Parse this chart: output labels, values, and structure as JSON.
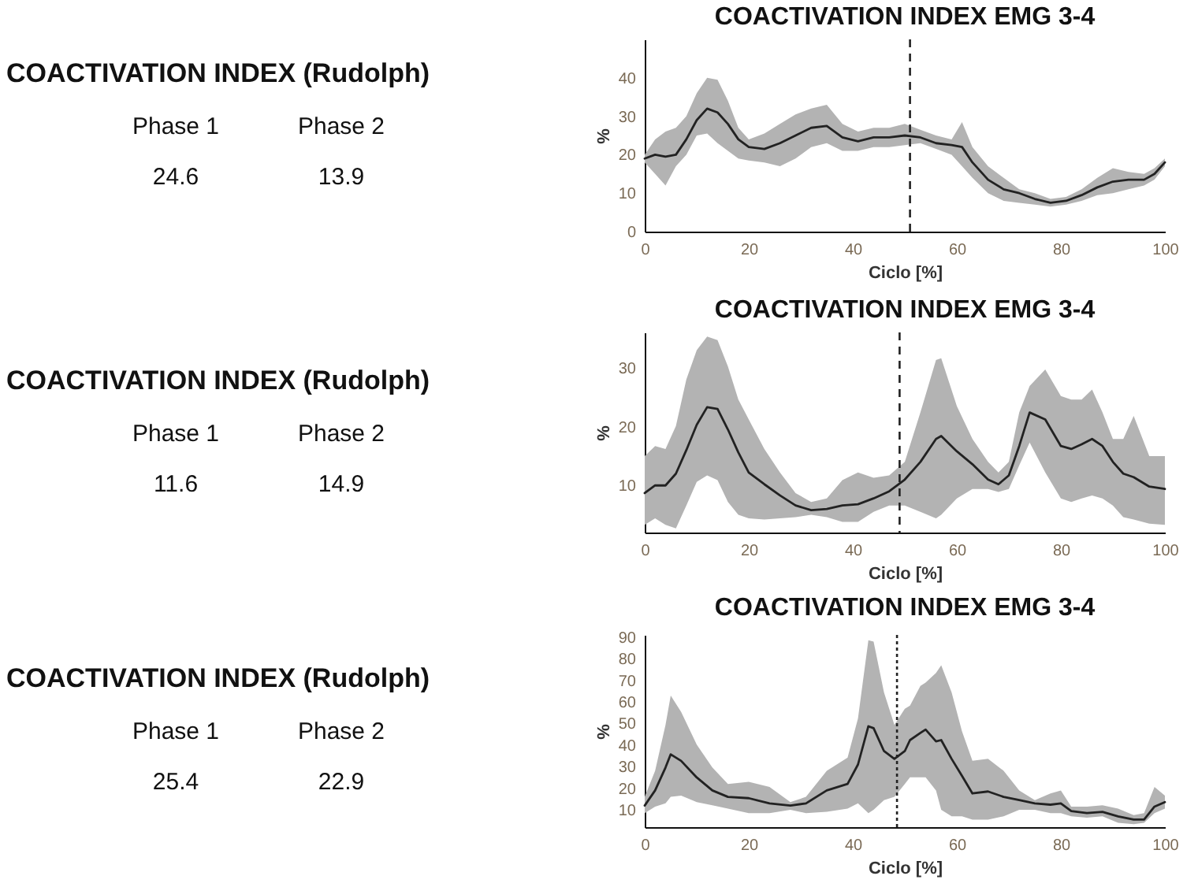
{
  "chart_data": [
    {
      "type": "other",
      "title": "COACTIVATION INDEX (Rudolph)",
      "categories": [
        "Phase 1",
        "Phase 2"
      ],
      "values": [
        24.6,
        13.9
      ],
      "data_labels": true
    },
    {
      "type": "line",
      "title": "COACTIVATION INDEX EMG 3-4",
      "xlabel": "Ciclo [%]",
      "ylabel": "%",
      "xlim": [
        0,
        100
      ],
      "ylim": [
        0,
        50
      ],
      "xticks": [
        0,
        20,
        40,
        60,
        80,
        100
      ],
      "yticks": [
        0,
        10,
        20,
        30,
        40
      ],
      "x": [
        0,
        2,
        4,
        6,
        8,
        10,
        12,
        14,
        16,
        18,
        20,
        23,
        26,
        29,
        32,
        35,
        38,
        41,
        44,
        47,
        50,
        53,
        56,
        59,
        61,
        63,
        66,
        69,
        72,
        75,
        78,
        81,
        84,
        87,
        90,
        93,
        96,
        98,
        100
      ],
      "series": [
        {
          "color": "#222222",
          "values": [
            19,
            20,
            19.5,
            20,
            24,
            29,
            32,
            31,
            28,
            24,
            22,
            21.5,
            23,
            25,
            27,
            27.5,
            24.5,
            23.5,
            24.5,
            24.5,
            25,
            24.5,
            23,
            22.5,
            22,
            18,
            13.5,
            11,
            10,
            8.5,
            7.5,
            8,
            9.5,
            11.5,
            13,
            13.5,
            13.5,
            15,
            18
          ],
          "lower": [
            18,
            15,
            12,
            17,
            20,
            25,
            25.5,
            23,
            21,
            19,
            18.5,
            18,
            17,
            19,
            22,
            23,
            21,
            21,
            22,
            22,
            22.5,
            23,
            21.5,
            20,
            17,
            14,
            10,
            8,
            7.5,
            7,
            6.5,
            7,
            8,
            9.5,
            10,
            11,
            12,
            13.5,
            17
          ],
          "upper": [
            20,
            24,
            26,
            27,
            30,
            36,
            40,
            39.5,
            34,
            27,
            24,
            25.5,
            28,
            30.5,
            32,
            33,
            28,
            26,
            27,
            27,
            28,
            26.5,
            25,
            24,
            28.5,
            22,
            17,
            14,
            11,
            10,
            8.5,
            9,
            11,
            14,
            16.5,
            15.5,
            15,
            16.5,
            19
          ]
        }
      ],
      "ref_lines": [
        {
          "axis": "x",
          "value": 51,
          "line_style": "dashed"
        }
      ]
    },
    {
      "type": "other",
      "title": "COACTIVATION INDEX (Rudolph)",
      "categories": [
        "Phase 1",
        "Phase 2"
      ],
      "values": [
        11.6,
        14.9
      ],
      "data_labels": true
    },
    {
      "type": "line",
      "title": "COACTIVATION INDEX EMG 3-4",
      "xlabel": "Ciclo [%]",
      "ylabel": "%",
      "xlim": [
        0,
        100
      ],
      "ylim": [
        2,
        36
      ],
      "xticks": [
        0,
        20,
        40,
        60,
        80,
        100
      ],
      "yticks": [
        10,
        20,
        30
      ],
      "x": [
        0,
        2,
        4,
        6,
        8,
        10,
        12,
        14,
        16,
        18,
        20,
        23,
        26,
        29,
        32,
        35,
        38,
        41,
        44,
        47,
        50,
        53,
        56,
        57,
        60,
        63,
        66,
        68,
        70,
        72,
        74,
        77,
        80,
        82,
        84,
        86,
        88,
        90,
        92,
        94,
        97,
        100
      ],
      "series": [
        {
          "color": "#222222",
          "values": [
            8.7,
            10,
            10,
            12,
            16,
            20.3,
            23.3,
            23,
            19.5,
            15.6,
            12.2,
            10.2,
            8.3,
            6.6,
            5.8,
            6,
            6.6,
            6.8,
            7.8,
            9,
            11,
            14,
            17.9,
            18.4,
            15.8,
            13.6,
            11,
            10.2,
            11.7,
            16.7,
            22.4,
            21.2,
            16.7,
            16.2,
            17,
            17.9,
            16.7,
            14,
            12,
            11.4,
            9.8,
            9.4
          ],
          "lower": [
            3.3,
            4.4,
            3.3,
            2.7,
            6.6,
            10.6,
            11.7,
            10.9,
            7.2,
            5,
            4.4,
            4.2,
            4.4,
            4.6,
            5,
            4.6,
            3.8,
            3.8,
            5.5,
            6.6,
            6.6,
            5.5,
            4.4,
            5,
            7.8,
            9.4,
            9.4,
            8.9,
            9.4,
            13.4,
            17.3,
            12.2,
            7.8,
            7.2,
            7.8,
            8.3,
            7.8,
            6.6,
            4.6,
            4.2,
            3.5,
            3.3
          ],
          "upper": [
            15,
            16.7,
            16.2,
            20.1,
            28,
            33,
            35.3,
            34.7,
            30.2,
            24.6,
            21.2,
            16.2,
            12.2,
            8.7,
            7.2,
            7.8,
            10.9,
            12.2,
            11.3,
            11.7,
            14,
            22.4,
            31.3,
            31.6,
            23.5,
            17.9,
            14,
            12.2,
            14,
            22.4,
            26.9,
            29.7,
            25.2,
            24.6,
            24.6,
            26.3,
            22.4,
            17.9,
            17.9,
            21.8,
            15,
            15
          ]
        }
      ],
      "ref_lines": [
        {
          "axis": "x",
          "value": 49,
          "line_style": "dashed"
        }
      ]
    },
    {
      "type": "other",
      "title": "COACTIVATION INDEX (Rudolph)",
      "categories": [
        "Phase 1",
        "Phase 2"
      ],
      "values": [
        25.4,
        22.9
      ],
      "data_labels": true
    },
    {
      "type": "line",
      "title": "COACTIVATION INDEX EMG 3-4",
      "xlabel": "Ciclo [%]",
      "ylabel": "%",
      "xlim": [
        0,
        100
      ],
      "ylim": [
        2,
        91
      ],
      "xticks": [
        0,
        20,
        40,
        60,
        80,
        100
      ],
      "yticks": [
        10,
        20,
        30,
        40,
        50,
        60,
        70,
        80,
        90
      ],
      "x": [
        0,
        2,
        4,
        5,
        7,
        10,
        13,
        16,
        20,
        24,
        28,
        31,
        35,
        39,
        41,
        43,
        44,
        46,
        48,
        50,
        51,
        53,
        54,
        56,
        57,
        59,
        61,
        63,
        66,
        69,
        72,
        75,
        78,
        80,
        82,
        85,
        88,
        91,
        94,
        96,
        98,
        100
      ],
      "series": [
        {
          "color": "#222222",
          "values": [
            12,
            19,
            29.6,
            35.7,
            32.7,
            25,
            19,
            16,
            15.4,
            13,
            12,
            13,
            19,
            22,
            31,
            48.7,
            47.8,
            37.2,
            33.6,
            37.2,
            42.3,
            45.6,
            47.2,
            41.7,
            42.3,
            33.6,
            25.7,
            17.6,
            18.5,
            16,
            14.5,
            13,
            12.4,
            13,
            9.4,
            8.5,
            9.1,
            7,
            5.5,
            5.5,
            11.5,
            13.6
          ],
          "lower": [
            8.5,
            11.5,
            13,
            16,
            16.6,
            13.6,
            12.1,
            10.6,
            8.5,
            8.5,
            10,
            8.5,
            9.1,
            10.6,
            13,
            8.5,
            10,
            14.5,
            16,
            22,
            25.1,
            25.1,
            25.1,
            19,
            10,
            7,
            7,
            5.5,
            5.5,
            7,
            10,
            10,
            8.5,
            8.5,
            7,
            6.4,
            7,
            4,
            3.4,
            4,
            8.5,
            10.6
          ],
          "upper": [
            16,
            28.1,
            49.3,
            62.9,
            55.3,
            40.2,
            29.6,
            22,
            23,
            20.6,
            13.6,
            16,
            28.1,
            34.2,
            52.3,
            88.5,
            87.9,
            64.4,
            49.3,
            56.8,
            58.3,
            67.4,
            68.9,
            73.4,
            77,
            64.4,
            46.3,
            32.7,
            33.6,
            28.1,
            19,
            14.5,
            17.6,
            19,
            11.5,
            11.5,
            12.1,
            10.6,
            7.6,
            8.5,
            20.6,
            16.6
          ]
        }
      ],
      "ref_lines": [
        {
          "axis": "x",
          "value": 48.5,
          "line_style": "dotted"
        }
      ]
    }
  ]
}
